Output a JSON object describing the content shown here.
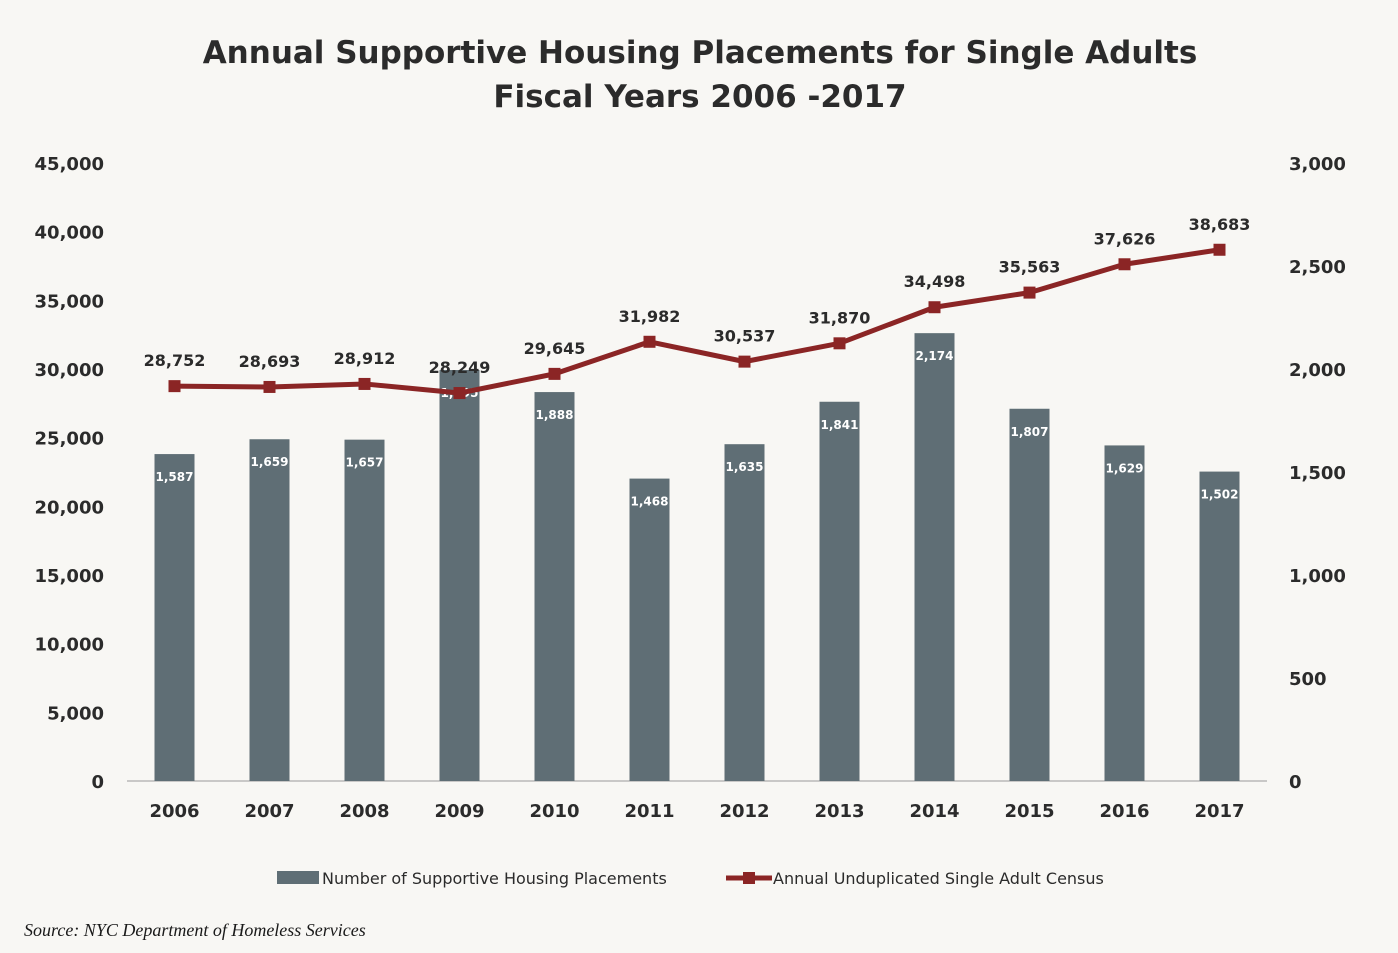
{
  "chart_data": {
    "type": "bar+line",
    "title": "Annual Supportive Housing Placements for Single Adults",
    "subtitle": "Fiscal Years 2006 -2017",
    "categories": [
      "2006",
      "2007",
      "2008",
      "2009",
      "2010",
      "2011",
      "2012",
      "2013",
      "2014",
      "2015",
      "2016",
      "2017"
    ],
    "left_axis": {
      "ylim": [
        0,
        45000
      ],
      "ticks": [
        "0",
        "5,000",
        "10,000",
        "15,000",
        "20,000",
        "25,000",
        "30,000",
        "35,000",
        "40,000",
        "45,000"
      ]
    },
    "right_axis": {
      "ylim": [
        0,
        3000
      ],
      "ticks": [
        "0",
        "500",
        "1,000",
        "1,500",
        "2,000",
        "2,500",
        "3,000"
      ]
    },
    "series": [
      {
        "name": "Number of Supportive Housing Placements",
        "type": "bar",
        "axis": "right",
        "color": "#5f6e75",
        "values": [
          1587,
          1659,
          1657,
          1995,
          1888,
          1468,
          1635,
          1841,
          2174,
          1807,
          1629,
          1502
        ],
        "labels": [
          "1,587",
          "1,659",
          "1,657",
          "1,995",
          "1,888",
          "1,468",
          "1,635",
          "1,841",
          "2,174",
          "1,807",
          "1,629",
          "1,502"
        ]
      },
      {
        "name": "Annual Unduplicated Single Adult Census",
        "type": "line",
        "axis": "left",
        "color": "#8b2525",
        "values": [
          28752,
          28693,
          28912,
          28249,
          29645,
          31982,
          30537,
          31870,
          34498,
          35563,
          37626,
          38683
        ],
        "labels": [
          "28,752",
          "28,693",
          "28,912",
          "28,249",
          "29,645",
          "31,982",
          "30,537",
          "31,870",
          "34,498",
          "35,563",
          "37,626",
          "38,683"
        ]
      }
    ],
    "legend_placement": "bottom",
    "grid": false
  },
  "source": "Source:  NYC Department of Homeless Services"
}
